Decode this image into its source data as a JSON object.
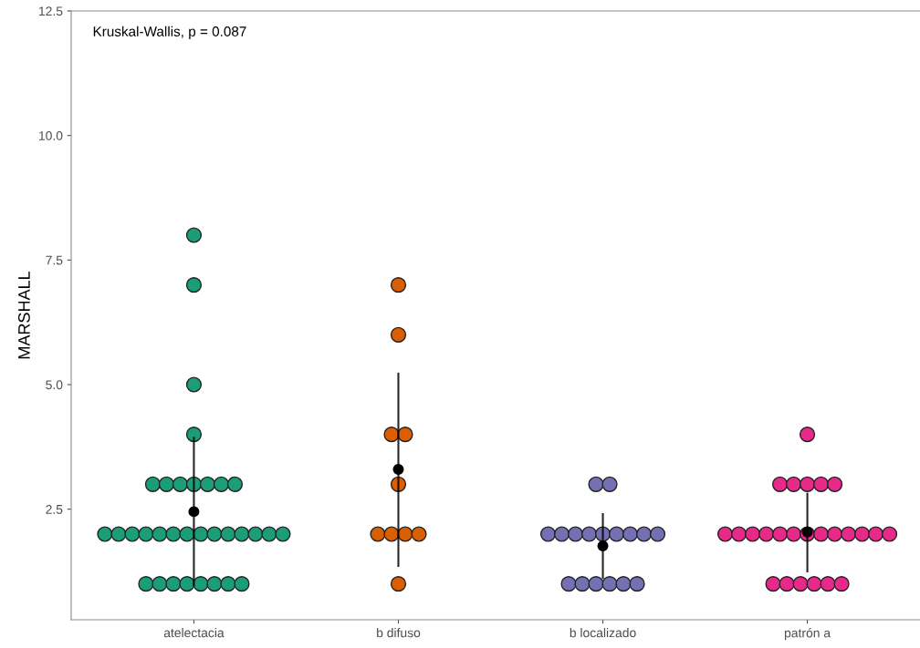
{
  "chart_data": {
    "type": "scatter",
    "ylabel": "MARSHALL",
    "annotations": [
      "Kruskal-Wallis, p = 0.087"
    ],
    "categories": [
      "atelectacia",
      "b difuso",
      "b localizado",
      "patrón a"
    ],
    "ylim": [
      0.28,
      12.5
    ],
    "yticks": [
      2.5,
      {
        "value": 5,
        "label": "5.0"
      },
      7.5,
      {
        "value": 10,
        "label": "10.0"
      },
      12.5
    ],
    "grid": false,
    "legend": false,
    "marker": "circle",
    "series": [
      {
        "color": "#1b9e77",
        "x": [
          "atelectacia",
          "atelectacia",
          "atelectacia",
          "atelectacia",
          "atelectacia",
          "atelectacia",
          "atelectacia",
          "atelectacia",
          "atelectacia",
          "atelectacia",
          "atelectacia",
          "atelectacia",
          "atelectacia",
          "atelectacia",
          "atelectacia",
          "atelectacia",
          "atelectacia",
          "atelectacia",
          "atelectacia",
          "atelectacia",
          "atelectacia",
          "atelectacia",
          "atelectacia",
          "atelectacia",
          "atelectacia",
          "atelectacia",
          "atelectacia",
          "atelectacia",
          "atelectacia",
          "atelectacia",
          "atelectacia",
          "atelectacia",
          "atelectacia"
        ],
        "values": [
          8,
          7,
          5,
          4,
          3,
          3,
          3,
          3,
          3,
          3,
          3,
          2,
          2,
          2,
          2,
          2,
          2,
          2,
          2,
          2,
          2,
          2,
          2,
          2,
          2,
          1,
          1,
          1,
          1,
          1,
          1,
          1,
          1
        ]
      },
      {
        "color": "#d95f02",
        "x": [
          "b difuso",
          "b difuso",
          "b difuso",
          "b difuso",
          "b difuso",
          "b difuso",
          "b difuso",
          "b difuso",
          "b difuso",
          "b difuso"
        ],
        "values": [
          7,
          6,
          4,
          4,
          3,
          2,
          2,
          2,
          2,
          1
        ]
      },
      {
        "color": "#7570b3",
        "x": [
          "b localizado",
          "b localizado",
          "b localizado",
          "b localizado",
          "b localizado",
          "b localizado",
          "b localizado",
          "b localizado",
          "b localizado",
          "b localizado",
          "b localizado",
          "b localizado",
          "b localizado",
          "b localizado",
          "b localizado",
          "b localizado",
          "b localizado"
        ],
        "values": [
          3,
          3,
          2,
          2,
          2,
          2,
          2,
          2,
          2,
          2,
          2,
          1,
          1,
          1,
          1,
          1,
          1
        ]
      },
      {
        "color": "#e7298a",
        "x": [
          "patrón a",
          "patrón a",
          "patrón a",
          "patrón a",
          "patrón a",
          "patrón a",
          "patrón a",
          "patrón a",
          "patrón a",
          "patrón a",
          "patrón a",
          "patrón a",
          "patrón a",
          "patrón a",
          "patrón a",
          "patrón a",
          "patrón a",
          "patrón a",
          "patrón a",
          "patrón a",
          "patrón a",
          "patrón a",
          "patrón a",
          "patrón a",
          "patrón a"
        ],
        "values": [
          4,
          3,
          3,
          3,
          3,
          3,
          2,
          2,
          2,
          2,
          2,
          2,
          2,
          2,
          2,
          2,
          2,
          2,
          2,
          1,
          1,
          1,
          1,
          1,
          1
        ]
      },
      {
        "color": "#000000",
        "x": [
          "atelectacia",
          "b difuso",
          "b localizado",
          "patrón a"
        ],
        "values": [
          2.45,
          3.3,
          1.76,
          2.04
        ],
        "errors": [
          [
            0.95,
            3.95
          ],
          [
            1.34,
            5.24
          ],
          [
            1.1,
            2.42
          ],
          [
            1.23,
            2.83
          ]
        ]
      }
    ]
  }
}
